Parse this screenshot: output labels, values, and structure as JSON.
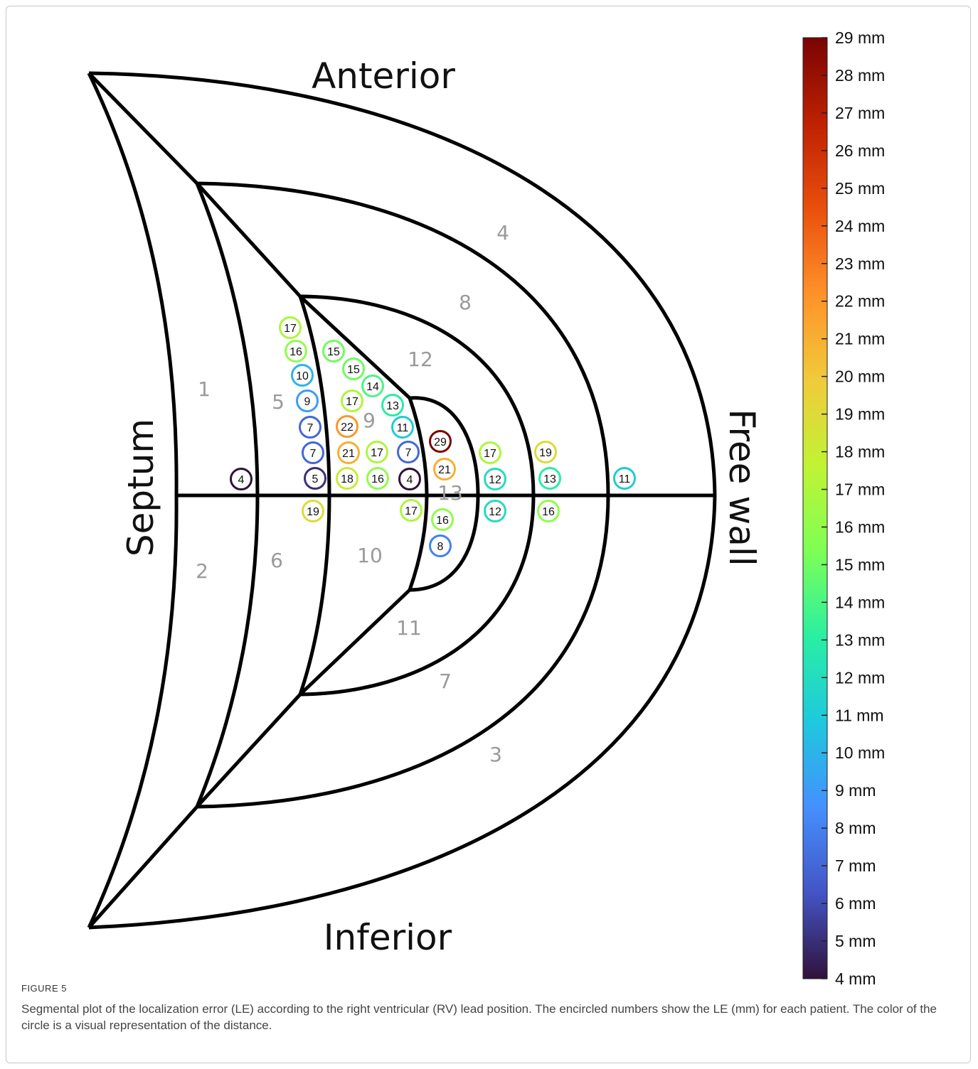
{
  "labels": {
    "anterior": "Anterior",
    "inferior": "Inferior",
    "septum": "Septum",
    "free_wall": "Free wall"
  },
  "segments": [
    "1",
    "2",
    "3",
    "4",
    "5",
    "6",
    "7",
    "8",
    "9",
    "10",
    "11",
    "12",
    "13"
  ],
  "markers": [
    {
      "v": "17",
      "t": 17
    },
    {
      "v": "16",
      "t": 16
    },
    {
      "v": "15",
      "t": 15
    },
    {
      "v": "10",
      "t": 10
    },
    {
      "v": "15",
      "t": 15
    },
    {
      "v": "14",
      "t": 14
    },
    {
      "v": "9",
      "t": 9
    },
    {
      "v": "17",
      "t": 17
    },
    {
      "v": "13",
      "t": 13
    },
    {
      "v": "7",
      "t": 7
    },
    {
      "v": "22",
      "t": 22
    },
    {
      "v": "11",
      "t": 11
    },
    {
      "v": "29",
      "t": 29
    },
    {
      "v": "7",
      "t": 7
    },
    {
      "v": "21",
      "t": 21
    },
    {
      "v": "17",
      "t": 17
    },
    {
      "v": "7",
      "t": 7
    },
    {
      "v": "17",
      "t": 17
    },
    {
      "v": "19",
      "t": 19
    },
    {
      "v": "21",
      "t": 21
    },
    {
      "v": "4",
      "t": 4
    },
    {
      "v": "5",
      "t": 5
    },
    {
      "v": "18",
      "t": 18
    },
    {
      "v": "16",
      "t": 16
    },
    {
      "v": "4",
      "t": 4
    },
    {
      "v": "12",
      "t": 12
    },
    {
      "v": "13",
      "t": 13
    },
    {
      "v": "11",
      "t": 11
    },
    {
      "v": "19",
      "t": 19
    },
    {
      "v": "17",
      "t": 17
    },
    {
      "v": "12",
      "t": 12
    },
    {
      "v": "16",
      "t": 16
    },
    {
      "v": "16",
      "t": 16
    },
    {
      "v": "8",
      "t": 8
    }
  ],
  "colorbar": {
    "min": 4,
    "max": 29,
    "unit": "mm",
    "tick_labels": [
      "29 mm",
      "28 mm",
      "27 mm",
      "26 mm",
      "25 mm",
      "24 mm",
      "23 mm",
      "22 mm",
      "21 mm",
      "20 mm",
      "19 mm",
      "18 mm",
      "17 mm",
      "16 mm",
      "15 mm",
      "14 mm",
      "13 mm",
      "12 mm",
      "11 mm",
      "10 mm",
      "9 mm",
      "8 mm",
      "7 mm",
      "6 mm",
      "5 mm",
      "4 mm"
    ],
    "colormap": [
      "#30123b",
      "#4454c4",
      "#4490fe",
      "#1fc8de",
      "#29efa2",
      "#7eff55",
      "#c1f334",
      "#f1ca3a",
      "#fe922a",
      "#ea4f0d",
      "#be2102",
      "#7a0403"
    ]
  },
  "caption": {
    "label": "FIGURE 5",
    "text": "Segmental plot of the localization error (LE) according to the right ventricular (RV) lead position. The encircled numbers show the LE (mm) for each patient. The color of the circle is a visual representation of the distance."
  }
}
